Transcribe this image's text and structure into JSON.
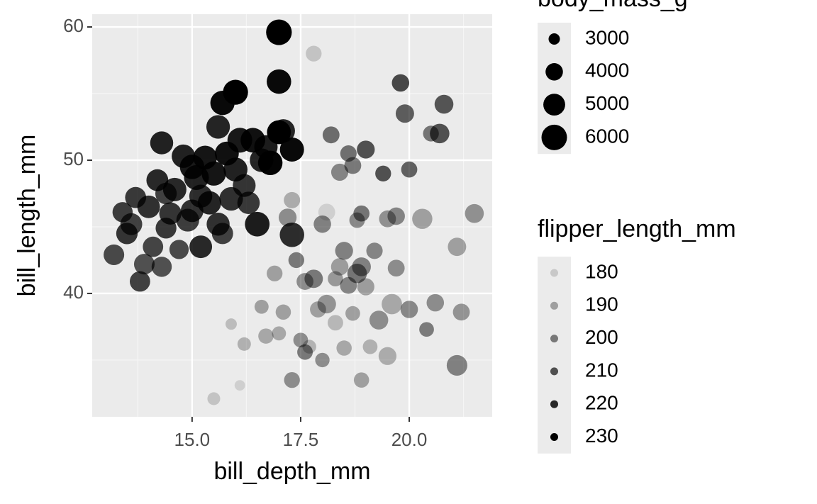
{
  "chart_data": {
    "type": "scatter",
    "x_label": "bill_depth_mm",
    "y_label": "bill_length_mm",
    "xlim": [
      12.7,
      21.91
    ],
    "ylim": [
      30.74,
      60.96
    ],
    "xticks": [
      {
        "value": 15,
        "label": "15.0"
      },
      {
        "value": 17.5,
        "label": "17.5"
      },
      {
        "value": 20,
        "label": "20.0"
      }
    ],
    "yticks": [
      40,
      50,
      60
    ],
    "grid": true,
    "color": "#000000",
    "x": [
      13.2,
      13.4,
      13.5,
      13.6,
      13.7,
      13.8,
      13.9,
      14.0,
      14.1,
      14.2,
      14.3,
      14.4,
      14.5,
      14.6,
      14.7,
      14.8,
      14.9,
      15.0,
      15.0,
      15.1,
      15.2,
      15.3,
      15.4,
      15.5,
      15.6,
      15.7,
      15.7,
      15.8,
      15.9,
      16.0,
      16.0,
      16.1,
      16.2,
      16.3,
      16.4,
      16.5,
      16.6,
      16.8,
      17.0,
      17.0,
      17.0,
      17.1,
      17.3,
      17.3,
      14.3,
      15.6,
      15.2,
      14.4,
      16.7,
      15.5,
      16.1,
      15.9,
      16.2,
      16.6,
      16.9,
      17.0,
      17.1,
      17.2,
      17.3,
      17.4,
      17.5,
      17.6,
      17.7,
      17.8,
      17.9,
      18.0,
      18.0,
      18.1,
      18.1,
      18.2,
      18.3,
      18.4,
      18.4,
      18.5,
      18.5,
      18.6,
      18.6,
      18.7,
      18.8,
      18.8,
      18.9,
      18.9,
      19.0,
      19.0,
      19.1,
      19.2,
      19.3,
      19.4,
      19.5,
      19.5,
      19.6,
      19.7,
      19.8,
      19.9,
      20.0,
      20.0,
      20.3,
      20.4,
      20.5,
      20.6,
      20.7,
      20.8,
      21.1,
      21.1,
      21.2,
      21.5,
      17.3,
      18.3,
      18.9,
      17.6,
      19.7,
      18.7,
      16.7,
      17.8
    ],
    "values": [
      42.9,
      46.1,
      44.5,
      45.2,
      47.2,
      40.9,
      42.2,
      46.5,
      43.5,
      48.5,
      51.3,
      44.9,
      46.0,
      47.8,
      43.3,
      50.3,
      45.5,
      49.5,
      46.2,
      48.7,
      47.3,
      50.2,
      46.8,
      49.0,
      45.2,
      54.3,
      44.5,
      50.5,
      47.1,
      55.1,
      49.3,
      51.5,
      48.1,
      46.8,
      51.5,
      45.2,
      50.0,
      49.8,
      59.6,
      55.9,
      52.1,
      52.2,
      50.8,
      44.4,
      42.0,
      52.5,
      43.5,
      47.5,
      51.0,
      32.1,
      33.1,
      37.7,
      36.2,
      39.0,
      41.5,
      37.0,
      38.6,
      45.7,
      47.0,
      42.5,
      36.5,
      40.9,
      36.0,
      58.0,
      38.8,
      35.0,
      45.2,
      46.1,
      39.2,
      51.9,
      37.8,
      42.0,
      49.1,
      35.9,
      43.2,
      40.6,
      50.5,
      38.5,
      45.5,
      41.5,
      46.0,
      33.5,
      40.5,
      50.8,
      36.0,
      43.2,
      38.0,
      49.0,
      45.6,
      35.3,
      39.2,
      41.9,
      55.8,
      53.5,
      38.8,
      49.3,
      45.6,
      37.3,
      52.0,
      39.3,
      52.0,
      54.2,
      34.6,
      43.5,
      38.6,
      46.0,
      33.5,
      41.1,
      42.0,
      35.6,
      45.8,
      49.6,
      36.8,
      41.1
    ],
    "size": [
      4700,
      4600,
      4900,
      5000,
      4800,
      4650,
      4700,
      5200,
      4650,
      5000,
      5300,
      4750,
      5100,
      5400,
      4400,
      5400,
      5250,
      5700,
      5200,
      5800,
      5300,
      5500,
      5400,
      5650,
      5300,
      5650,
      4850,
      5550,
      5450,
      5850,
      5550,
      5800,
      5250,
      5150,
      5750,
      5750,
      5450,
      5700,
      6050,
      5700,
      5550,
      5400,
      5600,
      5700,
      4600,
      5450,
      5200,
      4900,
      5400,
      3200,
      2900,
      3000,
      3300,
      3400,
      3700,
      3400,
      3600,
      4100,
      3800,
      3700,
      3500,
      3900,
      3350,
      3700,
      3750,
      3450,
      4000,
      3900,
      4250,
      3900,
      3650,
      4000,
      3950,
      3600,
      4100,
      3900,
      3800,
      3500,
      3650,
      4450,
      3750,
      3600,
      3950,
      4100,
      3500,
      3800,
      4300,
      3700,
      3900,
      4100,
      4650,
      3900,
      4000,
      4200,
      4000,
      3750,
      4600,
      3500,
      3700,
      4000,
      4450,
      4300,
      4700,
      4200,
      3900,
      4300,
      3700,
      3600,
      4300,
      3650,
      4000,
      3900,
      3600,
      4200
    ],
    "alpha": [
      212,
      215,
      217,
      214,
      216,
      214,
      210,
      218,
      213,
      220,
      222,
      216,
      217,
      220,
      212,
      222,
      215,
      224,
      218,
      222,
      219,
      225,
      221,
      225,
      218,
      228,
      214,
      226,
      218,
      230,
      222,
      224,
      217,
      216,
      226,
      223,
      221,
      229,
      230,
      228,
      230,
      221,
      228,
      219,
      210,
      221,
      220,
      214,
      223,
      181,
      178,
      183,
      186,
      190,
      190,
      188,
      190,
      195,
      187,
      200,
      195,
      195,
      185,
      181,
      190,
      195,
      198,
      178,
      193,
      203,
      184,
      191,
      197,
      188,
      198,
      197,
      202,
      190,
      196,
      201,
      201,
      190,
      191,
      210,
      186,
      197,
      195,
      210,
      194,
      187,
      188,
      195,
      212,
      207,
      196,
      206,
      190,
      199,
      201,
      195,
      210,
      209,
      198,
      190,
      193,
      194,
      195,
      192,
      198,
      200,
      197,
      200,
      188,
      200
    ],
    "size_legend": {
      "title": "body_mass_g",
      "values": [
        3000,
        4000,
        5000,
        6000
      ]
    },
    "alpha_legend": {
      "title": "flipper_length_mm",
      "values": [
        180,
        190,
        200,
        210,
        220,
        230
      ]
    }
  }
}
